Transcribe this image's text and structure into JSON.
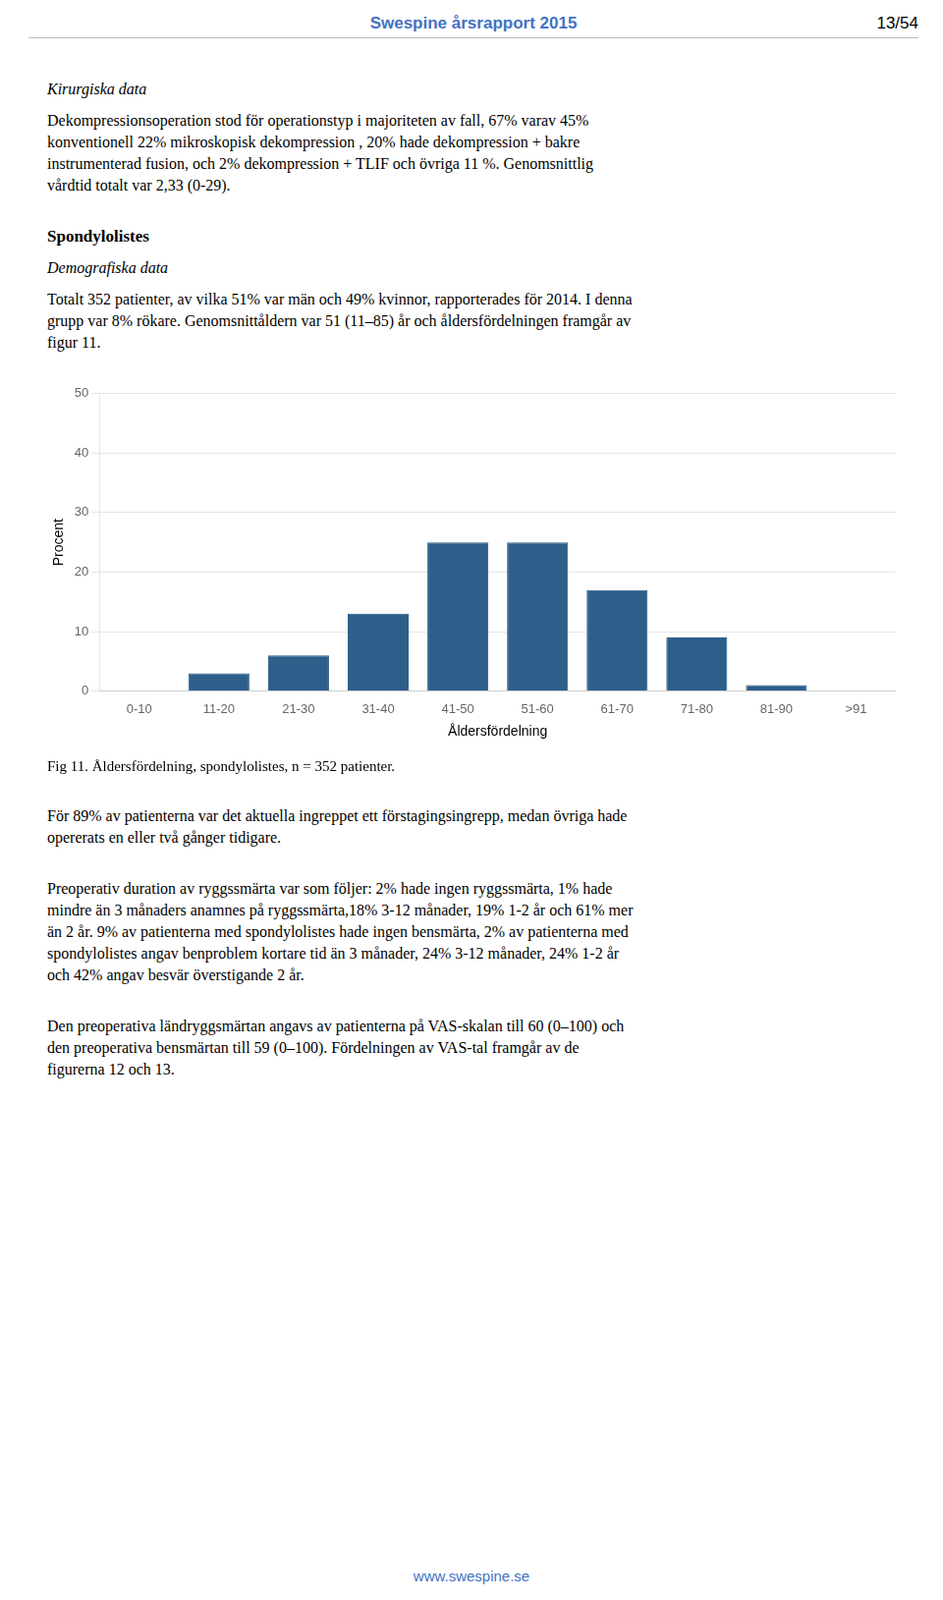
{
  "header": "Swespine årsrapport 2015",
  "page_number": "13/54",
  "sections_before": [
    {
      "heading": "Kirurgiska data",
      "lines": [
        "Dekompressionsoperation stod för operationstyp i majoriteten av fall, 67% varav 45%",
        "konventionell 22% mikroskopisk dekompression , 20% hade dekompression + bakre",
        "instrumenterad fusion, och 2% dekompression + TLIF och övriga 11 %. Genomsnittlig",
        "vårdtid totalt var 2,33 (0-29)."
      ]
    },
    {
      "heading": "Spondylolistes",
      "subheading": "Demografiska data",
      "lines": [
        "Totalt 352 patienter, av vilka 51% var män och 49% kvinnor, rapporterades för 2014. I denna",
        "grupp var 8% rökare. Genomsnittåldern var 51 (11–85) år och åldersfördelningen framgår av",
        "figur 11."
      ]
    }
  ],
  "chart_data": {
    "type": "bar",
    "title": "Fig 11. Åldersfördelning, spondylolistes, n = 352 patienter.",
    "x_label": "Åldersfördelning",
    "y_label": "Procent",
    "categories": [
      "0-10",
      "11-20",
      "21-30",
      "31-40",
      "41-50",
      "51-60",
      "61-70",
      "71-80",
      "81-90",
      ">91"
    ],
    "values": [
      0,
      3,
      6,
      13,
      25,
      25,
      17,
      9,
      1,
      0
    ],
    "color": "#2e5f8a",
    "ylim": [
      0,
      50
    ],
    "yticks": [
      0,
      10,
      20,
      30,
      40,
      50
    ],
    "grid": true
  },
  "sections_after": [
    {
      "lines": [
        "För 89% av patienterna var det aktuella ingreppet ett förstagingsingrepp, medan övriga hade",
        "opererats en eller två gånger tidigare."
      ]
    },
    {
      "lines": [
        "Preoperativ duration av ryggssmärta var som följer: 2% hade ingen ryggssmärta, 1% hade",
        "mindre än 3 månaders anamnes på ryggssmärta,18% 3-12 månader, 19% 1-2 år och 61% mer",
        "än 2 år. 9% av patienterna med spondylolistes hade ingen bensmärta, 2% av patienterna med",
        "spondylolistes angav benproblem kortare tid än 3 månader, 24% 3-12 månader, 24% 1-2 år",
        "och 42% angav besvär överstigande 2 år."
      ]
    },
    {
      "lines": [
        "Den preoperativa ländryggsmärtan angavs av patienterna på VAS-skalan till 60 (0–100) och",
        "den preoperativa bensmärtan till 59 (0–100). Fördelningen av VAS-tal framgår av de",
        "figurerna 12 och 13."
      ]
    }
  ],
  "footer": "www.swespine.se"
}
